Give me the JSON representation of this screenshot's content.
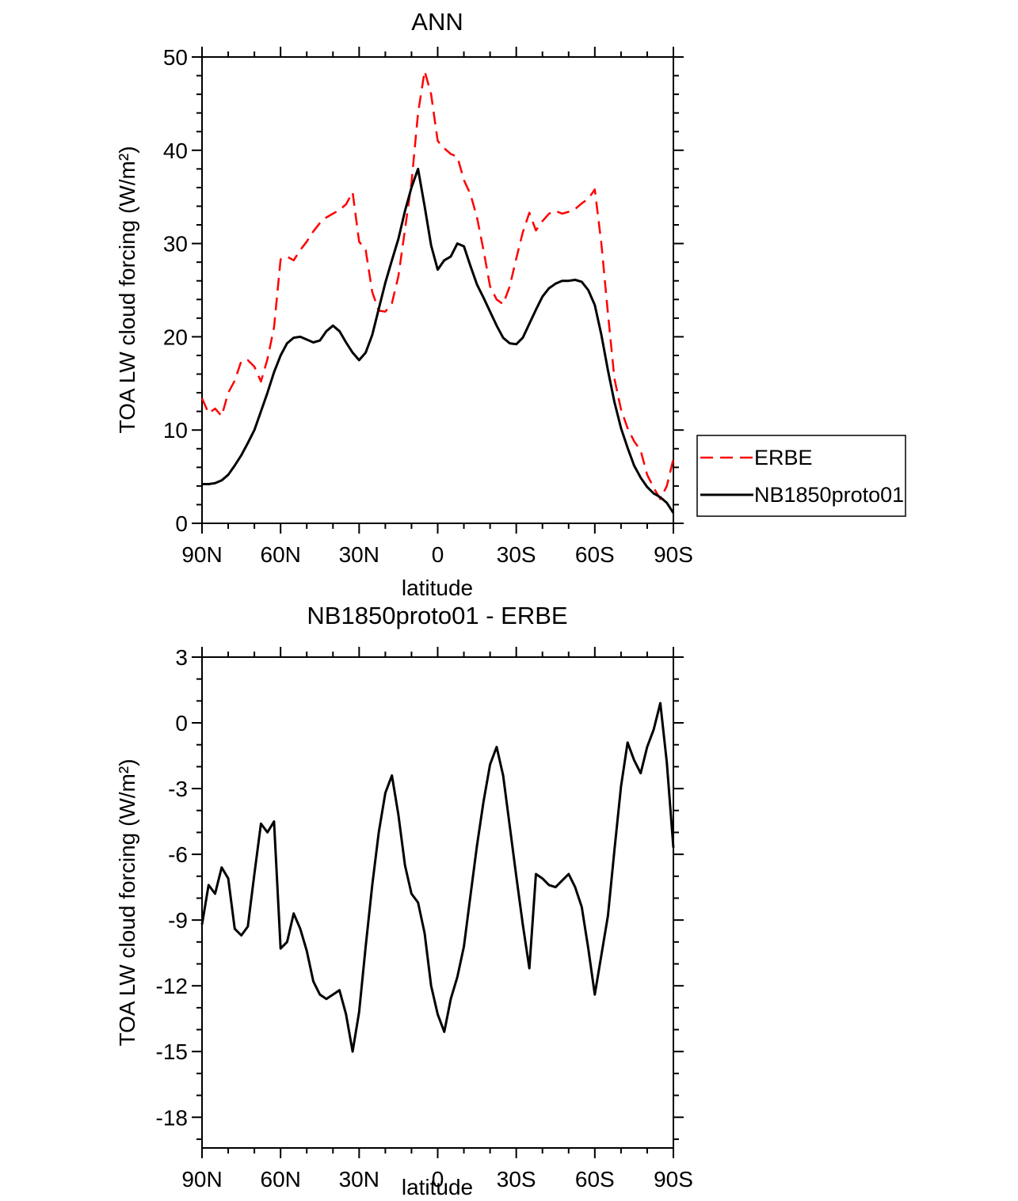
{
  "figure": {
    "background": "#ffffff",
    "frame_color": "#000000"
  },
  "chart_data": [
    {
      "type": "line",
      "title": "ANN",
      "xlabel": "latitude",
      "ylabel": "TOA LW cloud forcing (W/m²)",
      "xlim": [
        90,
        -90
      ],
      "ylim": [
        0,
        50
      ],
      "grid": false,
      "legend_position": "outside-right",
      "x_major_ticks": [
        90,
        60,
        30,
        0,
        -30,
        -60,
        -90
      ],
      "x_tick_labels": [
        "90N",
        "60N",
        "30N",
        "0",
        "30S",
        "60S",
        "90S"
      ],
      "x_minor_step": 10,
      "y_major_ticks": [
        0,
        10,
        20,
        30,
        40,
        50
      ],
      "y_minor_step": 2,
      "x": [
        90,
        87.5,
        85,
        82.5,
        80,
        77.5,
        75,
        72.5,
        70,
        67.5,
        65,
        62.5,
        60,
        57.5,
        55,
        52.5,
        50,
        47.5,
        45,
        42.5,
        40,
        37.5,
        35,
        32.5,
        30,
        27.5,
        25,
        22.5,
        20,
        17.5,
        15,
        12.5,
        10,
        7.5,
        5,
        2.5,
        0,
        -2.5,
        -5,
        -7.5,
        -10,
        -12.5,
        -15,
        -17.5,
        -20,
        -22.5,
        -25,
        -27.5,
        -30,
        -32.5,
        -35,
        -37.5,
        -40,
        -42.5,
        -45,
        -47.5,
        -50,
        -52.5,
        -55,
        -57.5,
        -60,
        -62.5,
        -65,
        -67.5,
        -70,
        -72.5,
        -75,
        -77.5,
        -80,
        -82.5,
        -85,
        -87.5,
        -90
      ],
      "series": [
        {
          "name": "ERBE",
          "color": "#ff0000",
          "style": "dashed",
          "values": [
            13.4,
            11.8,
            12.3,
            11.5,
            14.0,
            15.3,
            17.4,
            17.5,
            16.8,
            15.2,
            17.6,
            21.0,
            28.3,
            28.6,
            28.2,
            29.3,
            30.2,
            31.3,
            32.2,
            32.8,
            33.2,
            33.6,
            34.2,
            35.5,
            30.2,
            29.3,
            24.8,
            22.8,
            22.7,
            23.6,
            26.5,
            31.5,
            36.5,
            44.0,
            48.5,
            46.0,
            41.0,
            40.2,
            39.6,
            39.3,
            36.8,
            35.3,
            32.8,
            29.3,
            25.4,
            24.0,
            23.5,
            25.4,
            28.4,
            31.2,
            33.3,
            31.4,
            32.4,
            33.2,
            33.5,
            33.2,
            33.4,
            33.7,
            34.3,
            34.8,
            35.8,
            30.0,
            22.5,
            15.5,
            12.2,
            10.2,
            8.8,
            7.8,
            5.2,
            3.8,
            2.6,
            4.0,
            6.9
          ]
        },
        {
          "name": "NB1850proto01",
          "color": "#000000",
          "style": "solid",
          "values": [
            4.2,
            4.2,
            4.3,
            4.6,
            5.2,
            6.2,
            7.3,
            8.6,
            10.0,
            12.0,
            14.0,
            16.2,
            18.0,
            19.3,
            19.9,
            20.0,
            19.7,
            19.4,
            19.6,
            20.6,
            21.2,
            20.6,
            19.4,
            18.3,
            17.5,
            18.3,
            20.2,
            23.0,
            25.8,
            28.2,
            30.5,
            33.5,
            36.0,
            38.0,
            34.0,
            29.8,
            27.2,
            28.2,
            28.6,
            30.0,
            29.7,
            27.6,
            25.6,
            24.2,
            22.7,
            21.2,
            19.9,
            19.3,
            19.2,
            19.9,
            21.4,
            22.9,
            24.3,
            25.2,
            25.7,
            26.0,
            26.0,
            26.1,
            25.9,
            25.0,
            23.4,
            20.2,
            16.4,
            13.0,
            10.2,
            8.1,
            6.2,
            4.9,
            3.9,
            3.2,
            2.8,
            2.2,
            1.1
          ]
        }
      ]
    },
    {
      "type": "line",
      "title": "NB1850proto01 - ERBE",
      "xlabel": "latitude",
      "ylabel": "TOA LW cloud forcing (W/m²)",
      "xlim": [
        90,
        -90
      ],
      "ylim": [
        -19.4,
        3
      ],
      "grid": false,
      "x_major_ticks": [
        90,
        60,
        30,
        0,
        -30,
        -60,
        -90
      ],
      "x_tick_labels": [
        "90N",
        "60N",
        "30N",
        "0",
        "30S",
        "60S",
        "90S"
      ],
      "x_minor_step": 10,
      "y_major_ticks": [
        -18,
        -15,
        -12,
        -9,
        -6,
        -3,
        0,
        3
      ],
      "y_minor_step": 1,
      "x": [
        90,
        87.5,
        85,
        82.5,
        80,
        77.5,
        75,
        72.5,
        70,
        67.5,
        65,
        62.5,
        60,
        57.5,
        55,
        52.5,
        50,
        47.5,
        45,
        42.5,
        40,
        37.5,
        35,
        32.5,
        30,
        27.5,
        25,
        22.5,
        20,
        17.5,
        15,
        12.5,
        10,
        7.5,
        5,
        2.5,
        0,
        -2.5,
        -5,
        -7.5,
        -10,
        -12.5,
        -15,
        -17.5,
        -20,
        -22.5,
        -25,
        -27.5,
        -30,
        -32.5,
        -35,
        -37.5,
        -40,
        -42.5,
        -45,
        -47.5,
        -50,
        -52.5,
        -55,
        -57.5,
        -60,
        -62.5,
        -65,
        -67.5,
        -70,
        -72.5,
        -75,
        -77.5,
        -80,
        -82.5,
        -85,
        -87.5,
        -90
      ],
      "series": [
        {
          "name": "NB1850proto01 - ERBE",
          "color": "#000000",
          "style": "solid",
          "values": [
            -9.2,
            -7.4,
            -7.8,
            -6.6,
            -7.1,
            -9.4,
            -9.7,
            -9.3,
            -6.9,
            -4.6,
            -5.0,
            -4.5,
            -10.3,
            -10.0,
            -8.7,
            -9.4,
            -10.4,
            -11.8,
            -12.4,
            -12.6,
            -12.4,
            -12.2,
            -13.3,
            -15.0,
            -13.2,
            -10.2,
            -7.4,
            -5.0,
            -3.2,
            -2.4,
            -4.2,
            -6.5,
            -7.8,
            -8.2,
            -9.6,
            -12.0,
            -13.3,
            -14.1,
            -12.6,
            -11.6,
            -10.2,
            -7.9,
            -5.6,
            -3.6,
            -1.9,
            -1.1,
            -2.4,
            -4.7,
            -7.0,
            -9.2,
            -11.2,
            -6.9,
            -7.1,
            -7.4,
            -7.5,
            -7.2,
            -6.9,
            -7.5,
            -8.4,
            -10.3,
            -12.4,
            -10.6,
            -8.8,
            -5.8,
            -2.9,
            -0.9,
            -1.7,
            -2.3,
            -1.1,
            -0.3,
            0.9,
            -1.8,
            -5.7
          ]
        }
      ]
    }
  ]
}
